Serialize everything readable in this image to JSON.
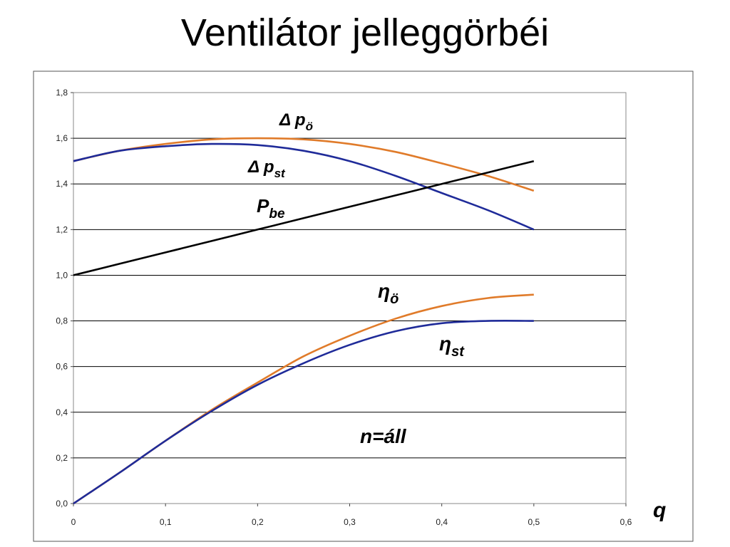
{
  "slide_title": "Ventilátor jelleggörbéi",
  "chart_data": {
    "type": "line",
    "xlabel": "q",
    "ylabel": "",
    "xlim": [
      0,
      0.6
    ],
    "ylim": [
      0,
      1.8
    ],
    "grid": "horizontal",
    "x_ticks": [
      "0",
      "0,1",
      "0,2",
      "0,3",
      "0,4",
      "0,5",
      "0,6"
    ],
    "y_ticks": [
      "0,0",
      "0,2",
      "0,4",
      "0,6",
      "0,8",
      "1,0",
      "1,2",
      "1,4",
      "1,6",
      "1,8"
    ],
    "x": [
      0,
      0.05,
      0.1,
      0.15,
      0.2,
      0.25,
      0.3,
      0.35,
      0.4,
      0.45,
      0.5
    ],
    "series": [
      {
        "name": "Δ pö",
        "sub": "ö",
        "symbol": "Δ p",
        "color": "#e07b2a",
        "values": [
          1.5,
          1.545,
          1.575,
          1.595,
          1.6,
          1.595,
          1.575,
          1.54,
          1.49,
          1.435,
          1.37
        ]
      },
      {
        "name": "Δ pst",
        "sub": "st",
        "symbol": "Δ p",
        "color": "#1f2b99",
        "values": [
          1.5,
          1.545,
          1.565,
          1.575,
          1.57,
          1.545,
          1.5,
          1.435,
          1.36,
          1.285,
          1.2
        ]
      },
      {
        "name": "Pbe",
        "sub": "be",
        "symbol": "P",
        "color": "#000000",
        "values": [
          1.0,
          1.05,
          1.1,
          1.15,
          1.2,
          1.25,
          1.3,
          1.35,
          1.4,
          1.45,
          1.5
        ]
      },
      {
        "name": "ηö",
        "sub": "ö",
        "symbol": "η",
        "color": "#e07b2a",
        "values": [
          0.0,
          0.135,
          0.275,
          0.41,
          0.53,
          0.645,
          0.735,
          0.81,
          0.865,
          0.9,
          0.915
        ]
      },
      {
        "name": "ηst",
        "sub": "st",
        "symbol": "η",
        "color": "#1f2b99",
        "values": [
          0.0,
          0.135,
          0.275,
          0.405,
          0.52,
          0.615,
          0.695,
          0.755,
          0.79,
          0.8,
          0.8
        ]
      }
    ],
    "annotation": "n=áll"
  }
}
